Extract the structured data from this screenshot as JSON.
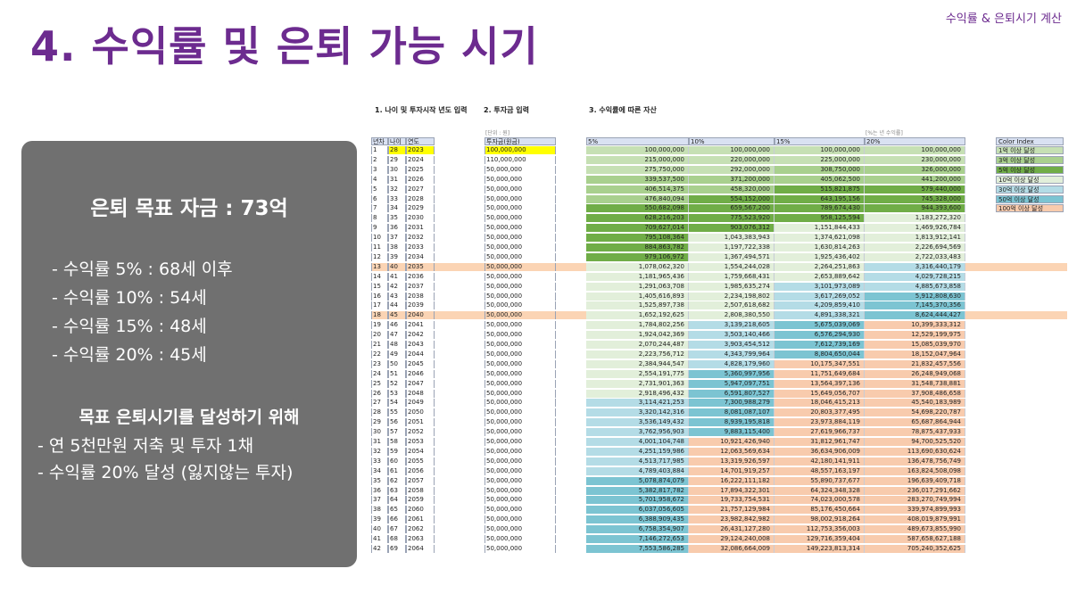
{
  "header": {
    "corner_title": "수익률 & 은퇴시기 계산",
    "page_title": "4. 수익률 및 은퇴 가능 시기"
  },
  "summary": {
    "goal": "은퇴 목표 자금 : 73억",
    "rates": [
      "- 수익률   5% : 68세 이후",
      "- 수익률 10% : 54세",
      "- 수익률 15% : 48세",
      "- 수익률 20% : 45세"
    ],
    "plan_title": "목표 은퇴시기를 달성하기 위해",
    "plan": [
      "- 연 5천만원 저축 및 투자 1채",
      "- 수익률 20% 달성 (잃지않는 투자)"
    ]
  },
  "spreadsheet": {
    "section1": "1. 나이 및 투자시작 년도 입력",
    "section2": "2. 투자금 입력",
    "section3": "3. 수익률에 따른 자산",
    "unit_note": "[단위 : 원]",
    "rate_note": "[%는 년 수익률]",
    "headers": [
      "년차",
      "나이",
      "연도",
      "투자금(원금)",
      "5%",
      "10%",
      "15%",
      "20%"
    ],
    "rows": [
      [
        "1",
        "28",
        "2023",
        "100,000,000",
        "100,000,000",
        "100,000,000",
        "100,000,000",
        "100,000,000"
      ],
      [
        "2",
        "29",
        "2024",
        "110,000,000",
        "215,000,000",
        "220,000,000",
        "225,000,000",
        "230,000,000"
      ],
      [
        "3",
        "30",
        "2025",
        "50,000,000",
        "275,750,000",
        "292,000,000",
        "308,750,000",
        "326,000,000"
      ],
      [
        "4",
        "31",
        "2026",
        "50,000,000",
        "339,537,500",
        "371,200,000",
        "405,062,500",
        "441,200,000"
      ],
      [
        "5",
        "32",
        "2027",
        "50,000,000",
        "406,514,375",
        "458,320,000",
        "515,821,875",
        "579,440,000"
      ],
      [
        "6",
        "33",
        "2028",
        "50,000,000",
        "476,840,094",
        "554,152,000",
        "643,195,156",
        "745,328,000"
      ],
      [
        "7",
        "34",
        "2029",
        "50,000,000",
        "550,682,098",
        "659,567,200",
        "789,674,430",
        "944,393,600"
      ],
      [
        "8",
        "35",
        "2030",
        "50,000,000",
        "628,216,203",
        "775,523,920",
        "958,125,594",
        "1,183,272,320"
      ],
      [
        "9",
        "36",
        "2031",
        "50,000,000",
        "709,627,014",
        "903,076,312",
        "1,151,844,433",
        "1,469,926,784"
      ],
      [
        "10",
        "37",
        "2032",
        "50,000,000",
        "795,108,364",
        "1,043,383,943",
        "1,374,621,098",
        "1,813,912,141"
      ],
      [
        "11",
        "38",
        "2033",
        "50,000,000",
        "884,863,782",
        "1,197,722,338",
        "1,630,814,263",
        "2,226,694,569"
      ],
      [
        "12",
        "39",
        "2034",
        "50,000,000",
        "979,106,972",
        "1,367,494,571",
        "1,925,436,402",
        "2,722,033,483"
      ],
      [
        "13",
        "40",
        "2035",
        "50,000,000",
        "1,078,062,320",
        "1,554,244,028",
        "2,264,251,863",
        "3,316,440,179"
      ],
      [
        "14",
        "41",
        "2036",
        "50,000,000",
        "1,181,965,436",
        "1,759,668,431",
        "2,653,889,642",
        "4,029,728,215"
      ],
      [
        "15",
        "42",
        "2037",
        "50,000,000",
        "1,291,063,708",
        "1,985,635,274",
        "3,101,973,089",
        "4,885,673,858"
      ],
      [
        "16",
        "43",
        "2038",
        "50,000,000",
        "1,405,616,893",
        "2,234,198,802",
        "3,617,269,052",
        "5,912,808,630"
      ],
      [
        "17",
        "44",
        "2039",
        "50,000,000",
        "1,525,897,738",
        "2,507,618,682",
        "4,209,859,410",
        "7,145,370,356"
      ],
      [
        "18",
        "45",
        "2040",
        "50,000,000",
        "1,652,192,625",
        "2,808,380,550",
        "4,891,338,321",
        "8,624,444,427"
      ],
      [
        "19",
        "46",
        "2041",
        "50,000,000",
        "1,784,802,256",
        "3,139,218,605",
        "5,675,039,069",
        "10,399,333,312"
      ],
      [
        "20",
        "47",
        "2042",
        "50,000,000",
        "1,924,042,369",
        "3,503,140,466",
        "6,576,294,930",
        "12,529,199,975"
      ],
      [
        "21",
        "48",
        "2043",
        "50,000,000",
        "2,070,244,487",
        "3,903,454,512",
        "7,612,739,169",
        "15,085,039,970"
      ],
      [
        "22",
        "49",
        "2044",
        "50,000,000",
        "2,223,756,712",
        "4,343,799,964",
        "8,804,650,044",
        "18,152,047,964"
      ],
      [
        "23",
        "50",
        "2045",
        "50,000,000",
        "2,384,944,547",
        "4,828,179,960",
        "10,175,347,551",
        "21,832,457,556"
      ],
      [
        "24",
        "51",
        "2046",
        "50,000,000",
        "2,554,191,775",
        "5,360,997,956",
        "11,751,649,684",
        "26,248,949,068"
      ],
      [
        "25",
        "52",
        "2047",
        "50,000,000",
        "2,731,901,363",
        "5,947,097,751",
        "13,564,397,136",
        "31,548,738,881"
      ],
      [
        "26",
        "53",
        "2048",
        "50,000,000",
        "2,918,496,432",
        "6,591,807,527",
        "15,649,056,707",
        "37,908,486,658"
      ],
      [
        "27",
        "54",
        "2049",
        "50,000,000",
        "3,114,421,253",
        "7,300,988,279",
        "18,046,415,213",
        "45,540,183,989"
      ],
      [
        "28",
        "55",
        "2050",
        "50,000,000",
        "3,320,142,316",
        "8,081,087,107",
        "20,803,377,495",
        "54,698,220,787"
      ],
      [
        "29",
        "56",
        "2051",
        "50,000,000",
        "3,536,149,432",
        "8,939,195,818",
        "23,973,884,119",
        "65,687,864,944"
      ],
      [
        "30",
        "57",
        "2052",
        "50,000,000",
        "3,762,956,903",
        "9,883,115,400",
        "27,619,966,737",
        "78,875,437,933"
      ],
      [
        "31",
        "58",
        "2053",
        "50,000,000",
        "4,001,104,748",
        "10,921,426,940",
        "31,812,961,747",
        "94,700,525,520"
      ],
      [
        "32",
        "59",
        "2054",
        "50,000,000",
        "4,251,159,986",
        "12,063,569,634",
        "36,634,906,009",
        "113,690,630,624"
      ],
      [
        "33",
        "60",
        "2055",
        "50,000,000",
        "4,513,717,985",
        "13,319,926,597",
        "42,180,141,911",
        "136,478,756,749"
      ],
      [
        "34",
        "61",
        "2056",
        "50,000,000",
        "4,789,403,884",
        "14,701,919,257",
        "48,557,163,197",
        "163,824,508,098"
      ],
      [
        "35",
        "62",
        "2057",
        "50,000,000",
        "5,078,874,079",
        "16,222,111,182",
        "55,890,737,677",
        "196,639,409,718"
      ],
      [
        "36",
        "63",
        "2058",
        "50,000,000",
        "5,382,817,782",
        "17,894,322,301",
        "64,324,348,328",
        "236,017,291,662"
      ],
      [
        "37",
        "64",
        "2059",
        "50,000,000",
        "5,701,958,672",
        "19,733,754,531",
        "74,023,000,578",
        "283,270,749,994"
      ],
      [
        "38",
        "65",
        "2060",
        "50,000,000",
        "6,037,056,605",
        "21,757,129,984",
        "85,176,450,664",
        "339,974,899,993"
      ],
      [
        "39",
        "66",
        "2061",
        "50,000,000",
        "6,388,909,435",
        "23,982,842,982",
        "98,002,918,264",
        "408,019,879,991"
      ],
      [
        "40",
        "67",
        "2062",
        "50,000,000",
        "6,758,354,907",
        "26,431,127,280",
        "112,753,356,003",
        "489,673,855,990"
      ],
      [
        "41",
        "68",
        "2063",
        "50,000,000",
        "7,146,272,653",
        "29,124,240,008",
        "129,716,359,404",
        "587,658,627,188"
      ],
      [
        "42",
        "69",
        "2064",
        "50,000,000",
        "7,553,586,285",
        "32,086,664,009",
        "149,223,813,314",
        "705,240,352,625"
      ]
    ],
    "highlight_rows": [
      12,
      17
    ],
    "color_index": {
      "title": "Color Index",
      "items": [
        {
          "label": "1억 이상 달성",
          "color": "#c6e0b4"
        },
        {
          "label": "3억 이상 달성",
          "color": "#a9d08e"
        },
        {
          "label": "5억 이상 달성",
          "color": "#70ad47"
        },
        {
          "label": "10억 이상 달성",
          "color": "#e2efda"
        },
        {
          "label": "30억 이상 달성",
          "color": "#b4dce6"
        },
        {
          "label": "50억 이상 달성",
          "color": "#7cc4d2"
        },
        {
          "label": "100억 이상 달성",
          "color": "#f8cbad"
        }
      ]
    },
    "cell_colors": {
      "first_investment": "#ffff00",
      "first_age_year": "#ffff00"
    }
  }
}
